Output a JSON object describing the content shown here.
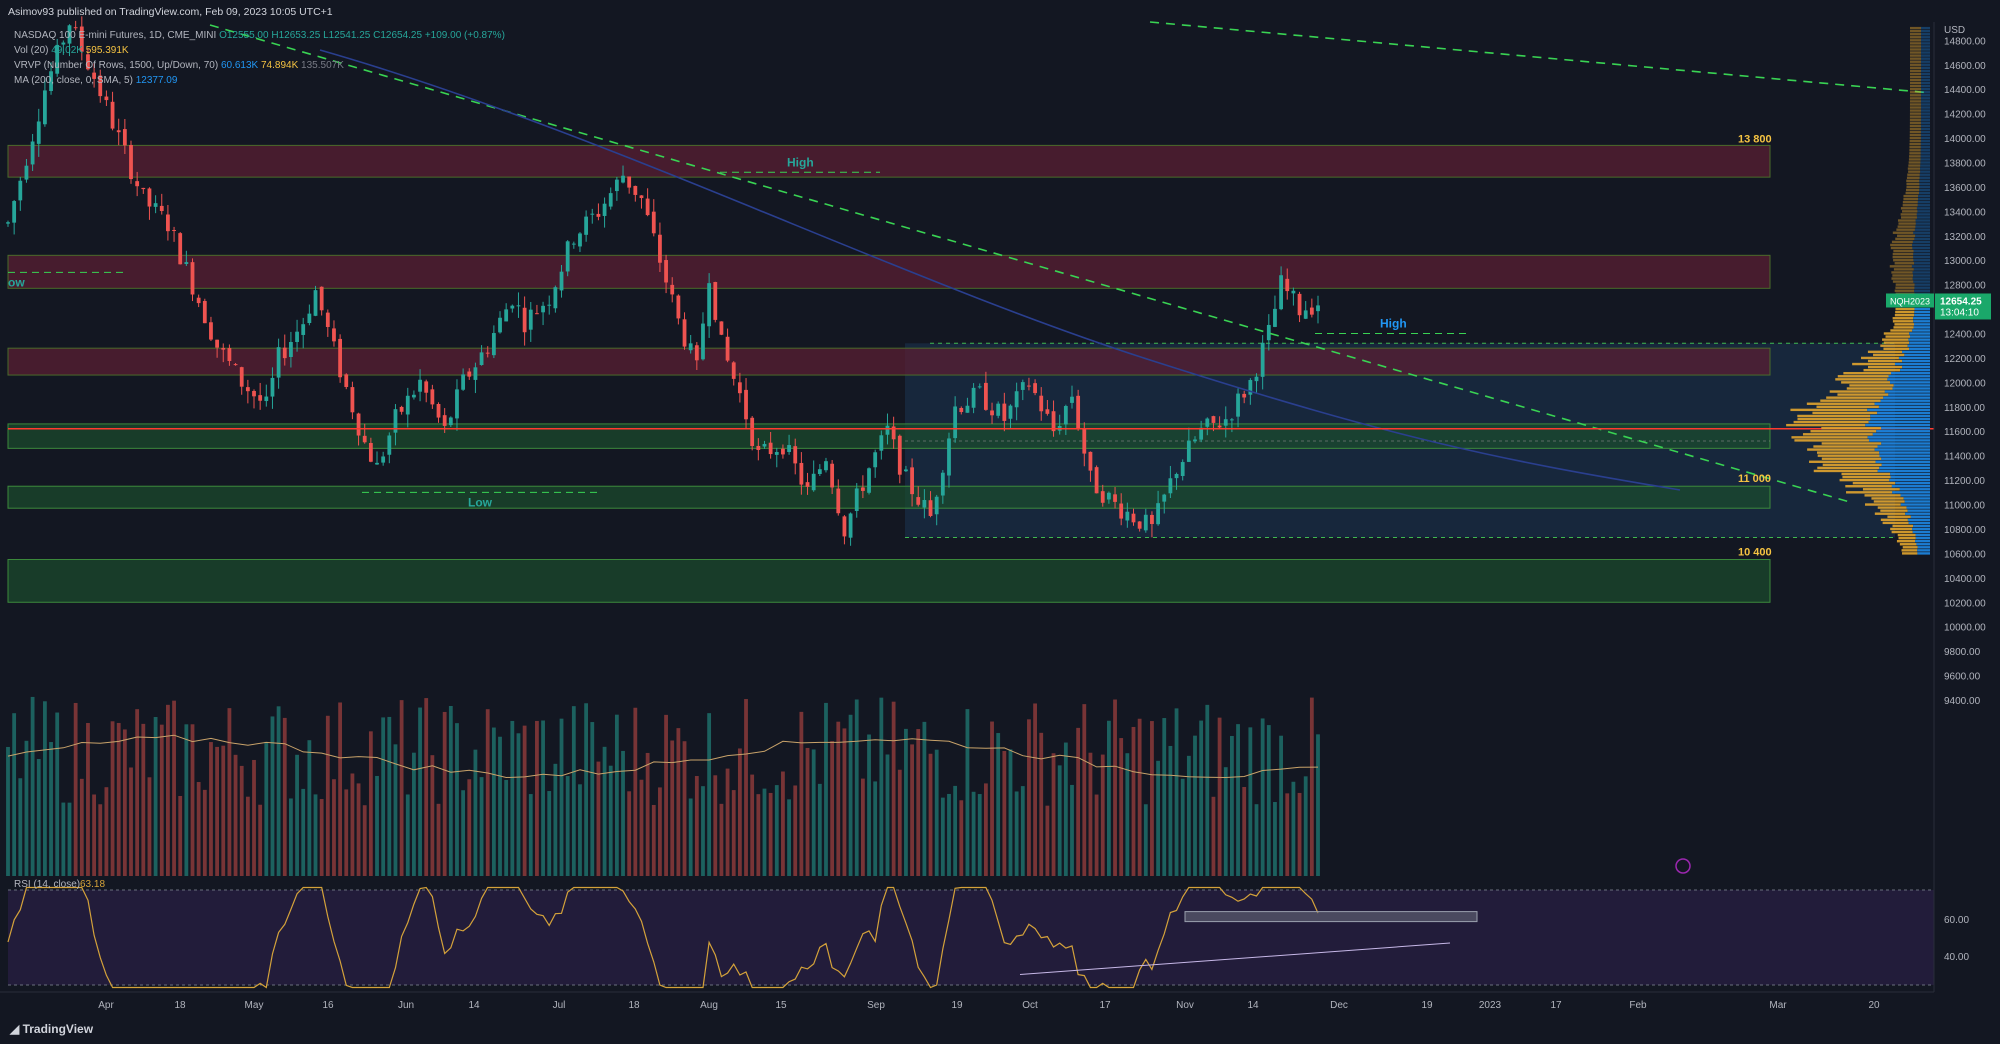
{
  "header": {
    "publisher": "Asimov93 published on TradingView.com, Feb 09, 2023 10:05 UTC+1",
    "symbol_line": "NASDAQ 100 E-mini Futures, 1D, CME_MINI",
    "ohlc": {
      "o": "O12555.00",
      "h": "H12653.25",
      "l": "L12541.25",
      "c": "C12654.25",
      "chg": "+109.00 (+0.87%)"
    },
    "vol_label": "Vol (20)",
    "vol_v1": "49.02K",
    "vol_v2": "595.391K",
    "vrvp_label": "VRVP (Number Of Rows, 1500, Up/Down, 70)",
    "vrvp_v1": "60.613K",
    "vrvp_v2": "74.894K",
    "vrvp_v3": "135.507K",
    "ma_label": "MA (200, close, 0, SMA, 5)",
    "ma_v": "12377.09"
  },
  "axis": {
    "currency": "USD",
    "price_ticks": [
      "14800.00",
      "14600.00",
      "14400.00",
      "14200.00",
      "14000.00",
      "13800.00",
      "13600.00",
      "13400.00",
      "13200.00",
      "13000.00",
      "12800.00",
      "12600.00",
      "12400.00",
      "12200.00",
      "12000.00",
      "11800.00",
      "11600.00",
      "11400.00",
      "11200.00",
      "11000.00",
      "10800.00",
      "10600.00",
      "10400.00",
      "10200.00",
      "10000.00",
      "9800.00",
      "9600.00",
      "9400.00"
    ],
    "rsi_ticks": [
      "60.00",
      "40.00"
    ],
    "time_ticks": [
      "Apr",
      "18",
      "May",
      "16",
      "Jun",
      "14",
      "Jul",
      "18",
      "Aug",
      "15",
      "Sep",
      "19",
      "Oct",
      "17",
      "Nov",
      "14",
      "Dec",
      "19",
      "2023",
      "17",
      "Feb",
      "Mar",
      "20"
    ]
  },
  "price_tag": {
    "symbol": "NQH2023",
    "price": "12654.25",
    "countdown": "13:04:10"
  },
  "annotations": {
    "zone_13800": "13 800",
    "zone_11000": "11 000",
    "zone_10400": "10 400",
    "high_1": "High",
    "high_2": "High",
    "low_1": "Low",
    "low_2": "ow"
  },
  "rsi_header": {
    "label": "RSI (14, close)",
    "value": "63.18"
  },
  "footer": {
    "brand": "TradingView"
  },
  "colors": {
    "bg": "#131722",
    "up": "#26a69a",
    "down": "#ef5350",
    "trend": "#39d353",
    "ma": "#2a3f8f",
    "poc": "#ff3b30",
    "vrvp_up": "#1e88e5",
    "vrvp_down": "#e2a52d",
    "rsi_bg": "#2a1f45",
    "rsi_line": "#d4a23a"
  },
  "chart_data": {
    "type": "candlestick",
    "timeframe": "1D",
    "ylim": [
      9400,
      14950
    ],
    "trend": [
      {
        "t": 0,
        "p": 13300
      },
      {
        "t": 6,
        "p": 14400
      },
      {
        "t": 10,
        "p": 14950
      },
      {
        "t": 14,
        "p": 14500
      },
      {
        "t": 18,
        "p": 14000
      },
      {
        "t": 22,
        "p": 13500
      },
      {
        "t": 26,
        "p": 13300
      },
      {
        "t": 30,
        "p": 12800
      },
      {
        "t": 34,
        "p": 12300
      },
      {
        "t": 38,
        "p": 12000
      },
      {
        "t": 42,
        "p": 11800
      },
      {
        "t": 44,
        "p": 12200
      },
      {
        "t": 48,
        "p": 12500
      },
      {
        "t": 50,
        "p": 12750
      },
      {
        "t": 54,
        "p": 12100
      },
      {
        "t": 58,
        "p": 11500
      },
      {
        "t": 60,
        "p": 11300
      },
      {
        "t": 63,
        "p": 11700
      },
      {
        "t": 67,
        "p": 12000
      },
      {
        "t": 71,
        "p": 11600
      },
      {
        "t": 74,
        "p": 12000
      },
      {
        "t": 78,
        "p": 12300
      },
      {
        "t": 82,
        "p": 12700
      },
      {
        "t": 84,
        "p": 12500
      },
      {
        "t": 88,
        "p": 12700
      },
      {
        "t": 92,
        "p": 13200
      },
      {
        "t": 96,
        "p": 13400
      },
      {
        "t": 100,
        "p": 13700
      },
      {
        "t": 103,
        "p": 13500
      },
      {
        "t": 106,
        "p": 13000
      },
      {
        "t": 109,
        "p": 12500
      },
      {
        "t": 112,
        "p": 12100
      },
      {
        "t": 114,
        "p": 12900
      },
      {
        "t": 116,
        "p": 12300
      },
      {
        "t": 119,
        "p": 11900
      },
      {
        "t": 122,
        "p": 11400
      },
      {
        "t": 126,
        "p": 11500
      },
      {
        "t": 130,
        "p": 11100
      },
      {
        "t": 133,
        "p": 11400
      },
      {
        "t": 136,
        "p": 10800
      },
      {
        "t": 140,
        "p": 11300
      },
      {
        "t": 143,
        "p": 11600
      },
      {
        "t": 146,
        "p": 11200
      },
      {
        "t": 150,
        "p": 10900
      },
      {
        "t": 154,
        "p": 11800
      },
      {
        "t": 158,
        "p": 11900
      },
      {
        "t": 162,
        "p": 11700
      },
      {
        "t": 166,
        "p": 12000
      },
      {
        "t": 170,
        "p": 11600
      },
      {
        "t": 173,
        "p": 11900
      },
      {
        "t": 176,
        "p": 11200
      },
      {
        "t": 180,
        "p": 11000
      },
      {
        "t": 183,
        "p": 10900
      },
      {
        "t": 186,
        "p": 10800
      },
      {
        "t": 190,
        "p": 11300
      },
      {
        "t": 194,
        "p": 11600
      },
      {
        "t": 198,
        "p": 11700
      },
      {
        "t": 202,
        "p": 12000
      },
      {
        "t": 205,
        "p": 12400
      },
      {
        "t": 207,
        "p": 12800
      },
      {
        "t": 210,
        "p": 12600
      },
      {
        "t": 213,
        "p": 12654
      }
    ],
    "zones": [
      {
        "from": 13680,
        "to": 13940,
        "kind": "resistance"
      },
      {
        "from": 12770,
        "to": 13040,
        "kind": "resistance"
      },
      {
        "from": 12060,
        "to": 12280,
        "kind": "resistance"
      },
      {
        "from": 11460,
        "to": 11660,
        "kind": "support"
      },
      {
        "from": 10970,
        "to": 11150,
        "kind": "support"
      },
      {
        "from": 10200,
        "to": 10550,
        "kind": "support"
      }
    ],
    "key_levels": {
      "poc": 11620,
      "high": 13720,
      "low": 11100
    },
    "rsi_range": [
      20,
      80
    ],
    "rsi_last": 63.18
  }
}
